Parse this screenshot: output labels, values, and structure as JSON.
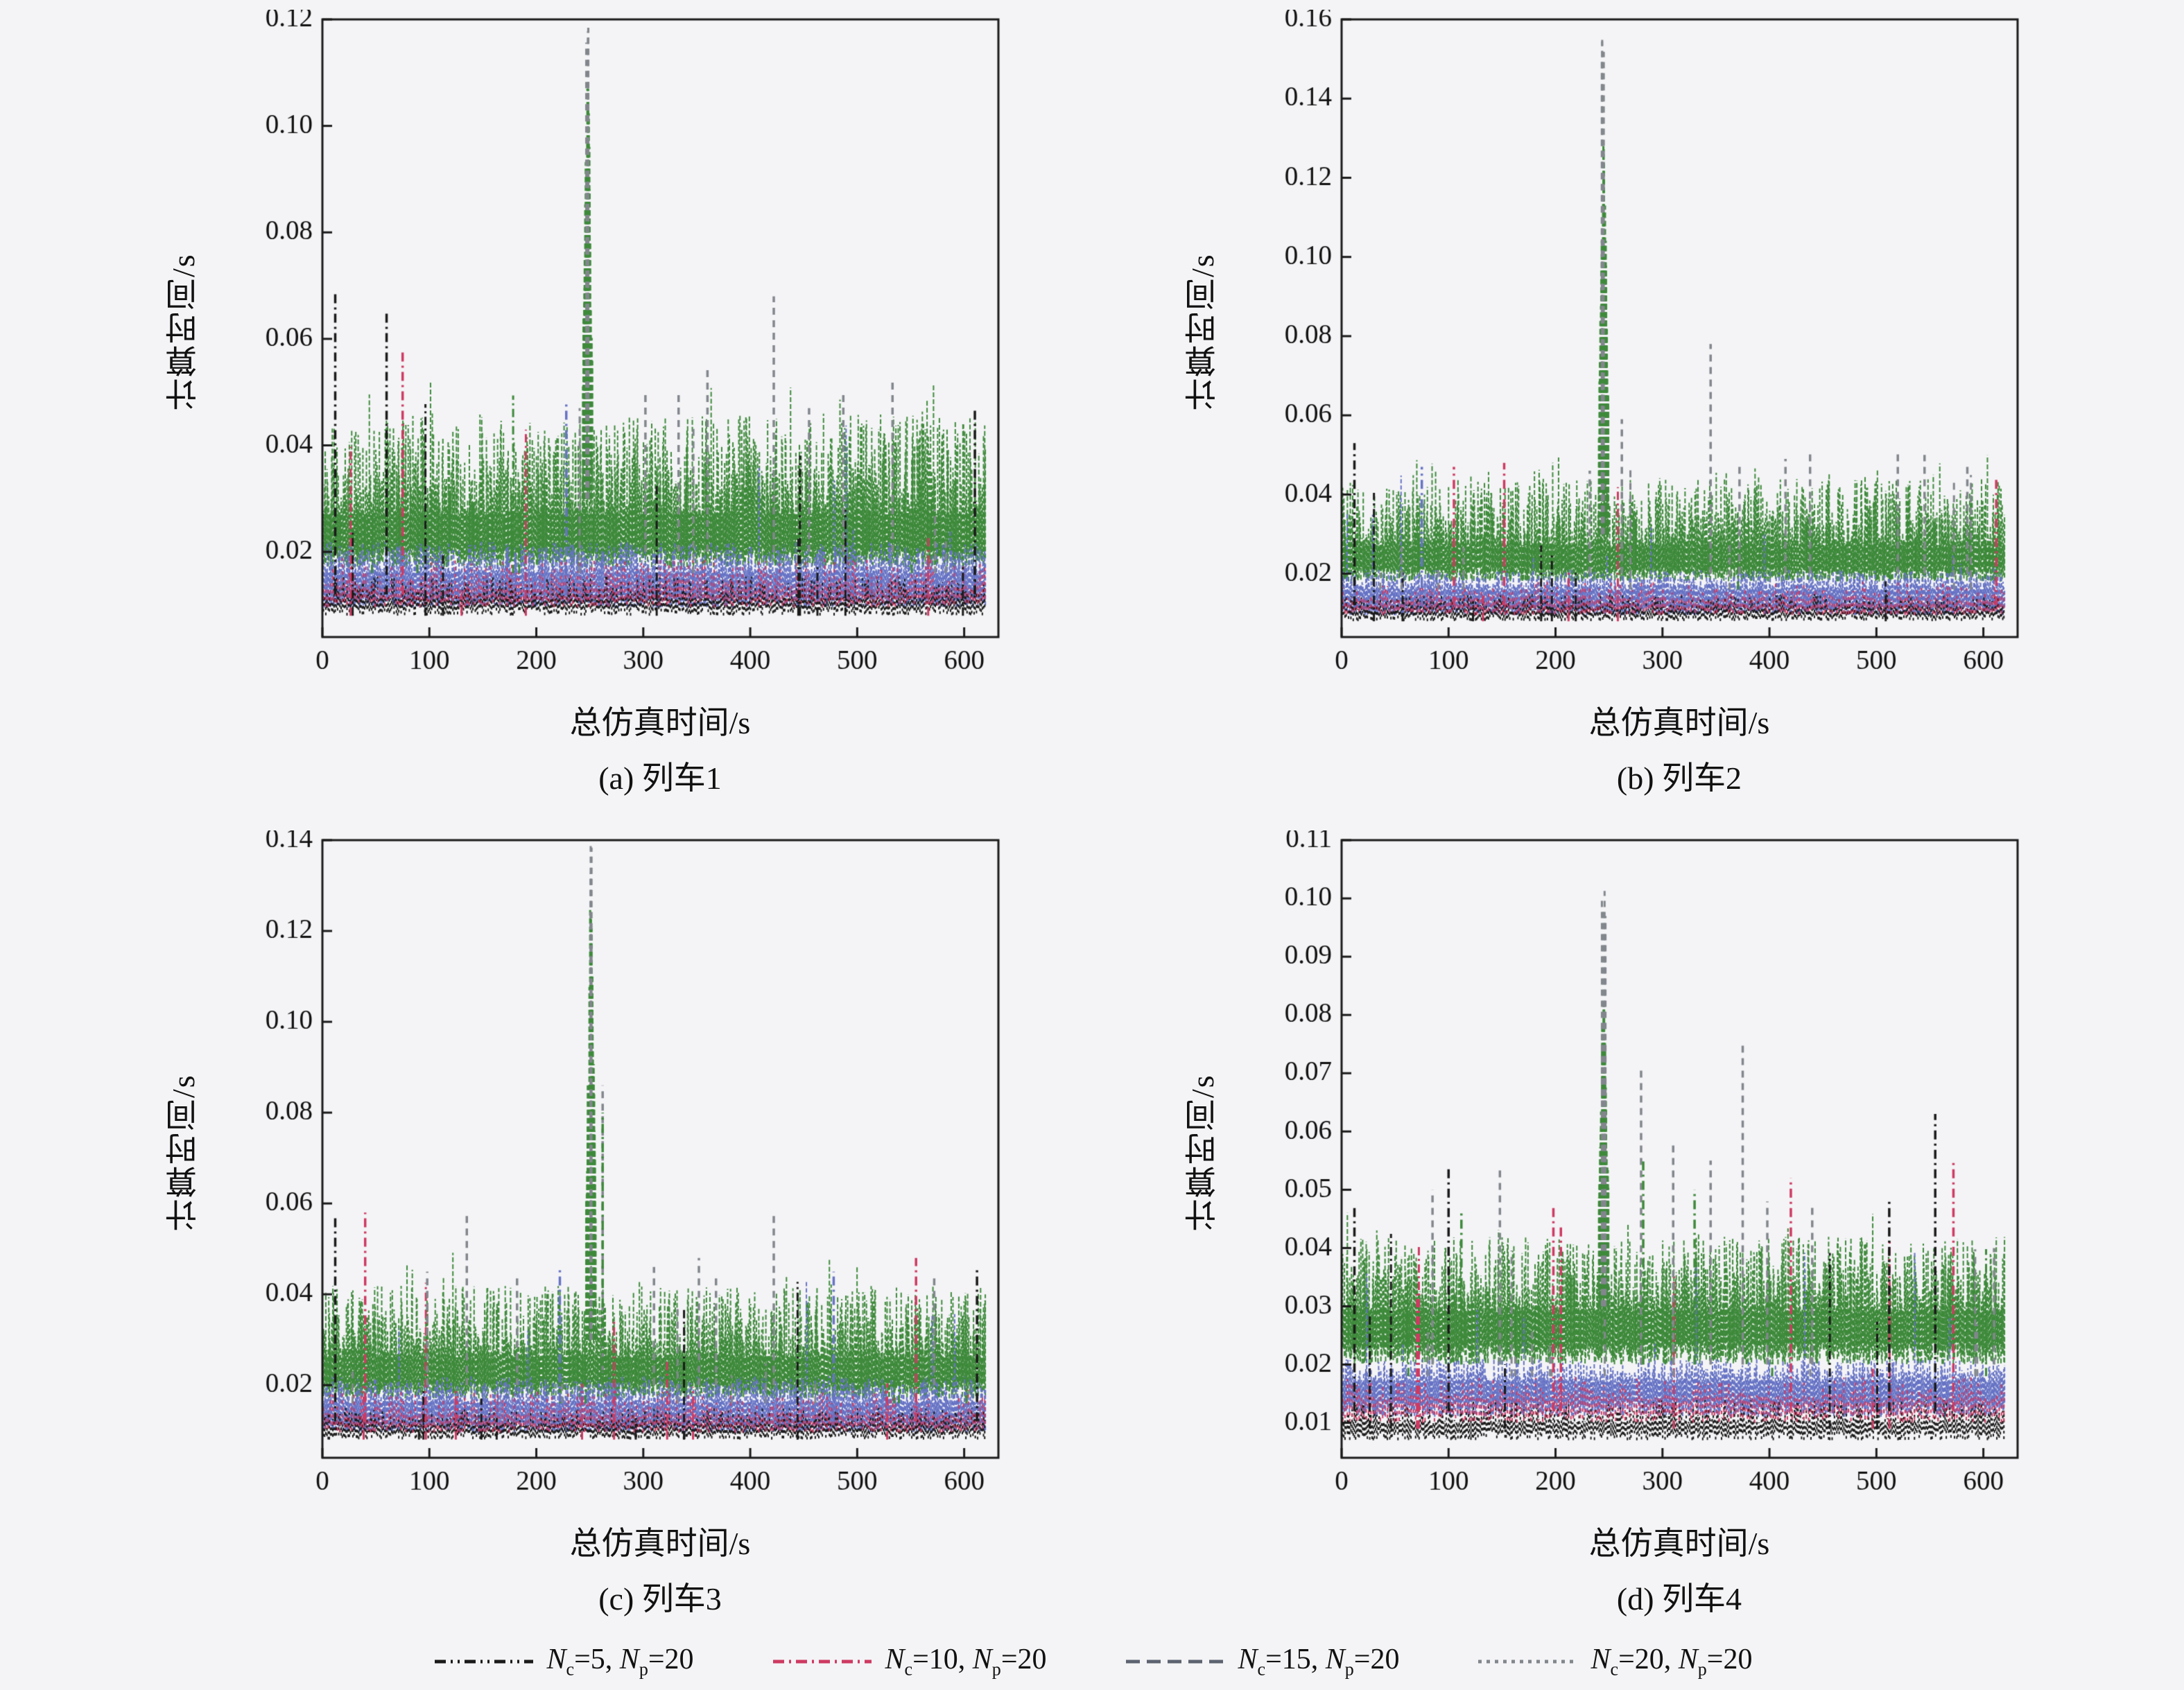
{
  "figure": {
    "background": "#f4f4f6",
    "axis_color": "#1a1a1a",
    "legend_position": "bottom"
  },
  "palette": {
    "black": "#1a1a1a",
    "red": "#ce3a62",
    "blue": "#6673c5",
    "green": "#3e8a3b",
    "gray": "#82878d",
    "darkgray": "#5c6370"
  },
  "legend": {
    "items": [
      {
        "name": "Nc=5, Np=20",
        "var1": "N",
        "sub1": "c",
        "rest1": "=5, ",
        "var2": "N",
        "sub2": "p",
        "rest2": "=20",
        "color": "#1a1a1a",
        "dash": "16 7 3 7 3 7"
      },
      {
        "name": "Nc=10, Np=20",
        "var1": "N",
        "sub1": "c",
        "rest1": "=10, ",
        "var2": "N",
        "sub2": "p",
        "rest2": "=20",
        "color": "#ce3a62",
        "dash": "16 7 3 7"
      },
      {
        "name": "Nc=15, Np=20",
        "var1": "N",
        "sub1": "c",
        "rest1": "=15, ",
        "var2": "N",
        "sub2": "p",
        "rest2": "=20",
        "color": "#5c6370",
        "dash": "20 10"
      },
      {
        "name": "Nc=20, Np=20",
        "var1": "N",
        "sub1": "c",
        "rest1": "=20, ",
        "var2": "N",
        "sub2": "p",
        "rest2": "=20",
        "color": "#82878d",
        "dash": "5 7"
      }
    ]
  },
  "chart_data": [
    {
      "id": "a",
      "type": "line",
      "caption": "(a) 列车1",
      "xlabel": "总仿真时间/s",
      "ylabel": "计算时间/s",
      "xlim": [
        0,
        632
      ],
      "xticks": [
        0,
        100,
        200,
        300,
        400,
        500,
        600
      ],
      "ylim": [
        0.004,
        0.12
      ],
      "yticks": [
        0.02,
        0.04,
        0.06,
        0.08,
        0.1,
        0.12
      ],
      "series": [
        {
          "name": "Nc=5, Np=20",
          "color": "#1a1a1a"
        },
        {
          "name": "Nc=10, Np=20",
          "color": "#ce3a62"
        },
        {
          "name": "Nc=15, Np=20",
          "color": "#5c6370"
        },
        {
          "name": "Nc=20, Np=20",
          "color": "#82878d"
        }
      ],
      "peak": {
        "x": 248,
        "green": 0.107,
        "top": 0.119
      },
      "bands": [
        {
          "color": "green",
          "lo": [
            0.017,
            0.021
          ],
          "hi": [
            0.027,
            0.046
          ],
          "step": 0.55,
          "spike_rate": 0.03,
          "spike_max": 0.052
        },
        {
          "color": "blue",
          "lo": [
            0.0095,
            0.012
          ],
          "hi": [
            0.016,
            0.022
          ],
          "step": 0.7,
          "spike_rate": 0.006,
          "spike_max": 0.046
        },
        {
          "color": "black",
          "lo": [
            0.008,
            0.01
          ],
          "hi": [
            0.011,
            0.0155
          ],
          "step": 1.1,
          "spike_rate": 0,
          "spike_max": 0
        },
        {
          "color": "red",
          "lo": [
            0.0095,
            0.0115
          ],
          "hi": [
            0.013,
            0.019
          ],
          "step": 2.2,
          "spike_rate": 0,
          "spike_max": 0
        }
      ],
      "spikes": [
        {
          "color": "black",
          "rate": 0.018,
          "max": 0.052,
          "from": 0.012
        },
        {
          "color": "red",
          "rate": 0.016,
          "max": 0.05,
          "from": 0.012
        },
        {
          "color": "gray",
          "rate": 0.02,
          "max": 0.048,
          "from": 0.02
        },
        {
          "color": "green",
          "rate": 0.012,
          "max": 0.05,
          "from": 0.02
        }
      ],
      "extra_spikes": [
        {
          "x": 12,
          "y": 0.069,
          "c": "black"
        },
        {
          "x": 60,
          "y": 0.065,
          "c": "black"
        },
        {
          "x": 75,
          "y": 0.058,
          "c": "red"
        },
        {
          "x": 228,
          "y": 0.048,
          "c": "blue"
        },
        {
          "x": 302,
          "y": 0.05,
          "c": "gray"
        },
        {
          "x": 333,
          "y": 0.05,
          "c": "gray"
        },
        {
          "x": 360,
          "y": 0.055,
          "c": "gray"
        },
        {
          "x": 422,
          "y": 0.068,
          "c": "gray"
        },
        {
          "x": 455,
          "y": 0.047,
          "c": "gray"
        },
        {
          "x": 487,
          "y": 0.05,
          "c": "gray"
        },
        {
          "x": 533,
          "y": 0.052,
          "c": "gray"
        },
        {
          "x": 610,
          "y": 0.047,
          "c": "black"
        }
      ]
    },
    {
      "id": "b",
      "type": "line",
      "caption": "(b) 列车2",
      "xlabel": "总仿真时间/s",
      "ylabel": "计算时间/s",
      "xlim": [
        0,
        632
      ],
      "xticks": [
        0,
        100,
        200,
        300,
        400,
        500,
        600
      ],
      "ylim": [
        0.004,
        0.16
      ],
      "yticks": [
        0.02,
        0.04,
        0.06,
        0.08,
        0.1,
        0.12,
        0.14,
        0.16
      ],
      "series": [
        {
          "name": "Nc=5, Np=20",
          "color": "#1a1a1a"
        },
        {
          "name": "Nc=10, Np=20",
          "color": "#ce3a62"
        },
        {
          "name": "Nc=15, Np=20",
          "color": "#5c6370"
        },
        {
          "name": "Nc=20, Np=20",
          "color": "#82878d"
        }
      ],
      "peak": {
        "x": 245,
        "green": 0.128,
        "top": 0.155
      },
      "bands": [
        {
          "color": "green",
          "lo": [
            0.018,
            0.022
          ],
          "hi": [
            0.027,
            0.044
          ],
          "step": 0.55,
          "spike_rate": 0.03,
          "spike_max": 0.05
        },
        {
          "color": "blue",
          "lo": [
            0.0095,
            0.012
          ],
          "hi": [
            0.016,
            0.021
          ],
          "step": 0.7,
          "spike_rate": 0.005,
          "spike_max": 0.045
        },
        {
          "color": "black",
          "lo": [
            0.008,
            0.01
          ],
          "hi": [
            0.011,
            0.015
          ],
          "step": 1.1,
          "spike_rate": 0,
          "spike_max": 0
        },
        {
          "color": "red",
          "lo": [
            0.0095,
            0.0115
          ],
          "hi": [
            0.013,
            0.018
          ],
          "step": 2.2,
          "spike_rate": 0,
          "spike_max": 0
        }
      ],
      "spikes": [
        {
          "color": "black",
          "rate": 0.014,
          "max": 0.046,
          "from": 0.012
        },
        {
          "color": "red",
          "rate": 0.015,
          "max": 0.048,
          "from": 0.012
        },
        {
          "color": "gray",
          "rate": 0.022,
          "max": 0.05,
          "from": 0.02
        },
        {
          "color": "green",
          "rate": 0.01,
          "max": 0.046,
          "from": 0.02
        }
      ],
      "extra_spikes": [
        {
          "x": 12,
          "y": 0.053,
          "c": "black"
        },
        {
          "x": 75,
          "y": 0.047,
          "c": "blue"
        },
        {
          "x": 105,
          "y": 0.047,
          "c": "red"
        },
        {
          "x": 152,
          "y": 0.048,
          "c": "red"
        },
        {
          "x": 232,
          "y": 0.046,
          "c": "gray"
        },
        {
          "x": 262,
          "y": 0.059,
          "c": "gray"
        },
        {
          "x": 345,
          "y": 0.078,
          "c": "gray"
        },
        {
          "x": 372,
          "y": 0.048,
          "c": "gray"
        },
        {
          "x": 415,
          "y": 0.049,
          "c": "gray"
        },
        {
          "x": 438,
          "y": 0.051,
          "c": "gray"
        },
        {
          "x": 520,
          "y": 0.051,
          "c": "gray"
        },
        {
          "x": 545,
          "y": 0.05,
          "c": "gray"
        },
        {
          "x": 585,
          "y": 0.047,
          "c": "gray"
        },
        {
          "x": 612,
          "y": 0.044,
          "c": "red"
        }
      ]
    },
    {
      "id": "c",
      "type": "line",
      "caption": "(c) 列车3",
      "xlabel": "总仿真时间/s",
      "ylabel": "计算时间/s",
      "xlim": [
        0,
        632
      ],
      "xticks": [
        0,
        100,
        200,
        300,
        400,
        500,
        600
      ],
      "ylim": [
        0.004,
        0.14
      ],
      "yticks": [
        0.02,
        0.04,
        0.06,
        0.08,
        0.1,
        0.12,
        0.14
      ],
      "series": [
        {
          "name": "Nc=5, Np=20",
          "color": "#1a1a1a"
        },
        {
          "name": "Nc=10, Np=20",
          "color": "#ce3a62"
        },
        {
          "name": "Nc=15, Np=20",
          "color": "#5c6370"
        },
        {
          "name": "Nc=20, Np=20",
          "color": "#82878d"
        }
      ],
      "peak": {
        "x": 251,
        "green": 0.125,
        "top": 0.139
      },
      "bands": [
        {
          "color": "green",
          "lo": [
            0.017,
            0.021
          ],
          "hi": [
            0.026,
            0.042
          ],
          "step": 0.55,
          "spike_rate": 0.028,
          "spike_max": 0.05
        },
        {
          "color": "blue",
          "lo": [
            0.0095,
            0.012
          ],
          "hi": [
            0.016,
            0.022
          ],
          "step": 0.7,
          "spike_rate": 0.006,
          "spike_max": 0.044
        },
        {
          "color": "black",
          "lo": [
            0.008,
            0.01
          ],
          "hi": [
            0.011,
            0.015
          ],
          "step": 1.1,
          "spike_rate": 0,
          "spike_max": 0
        },
        {
          "color": "red",
          "lo": [
            0.0095,
            0.0115
          ],
          "hi": [
            0.013,
            0.019
          ],
          "step": 2.2,
          "spike_rate": 0,
          "spike_max": 0
        }
      ],
      "spikes": [
        {
          "color": "black",
          "rate": 0.014,
          "max": 0.046,
          "from": 0.012
        },
        {
          "color": "red",
          "rate": 0.014,
          "max": 0.046,
          "from": 0.012
        },
        {
          "color": "gray",
          "rate": 0.02,
          "max": 0.046,
          "from": 0.02
        },
        {
          "color": "green",
          "rate": 0.01,
          "max": 0.046,
          "from": 0.02
        }
      ],
      "extra_spikes": [
        {
          "x": 12,
          "y": 0.057,
          "c": "black"
        },
        {
          "x": 40,
          "y": 0.058,
          "c": "red"
        },
        {
          "x": 98,
          "y": 0.045,
          "c": "gray"
        },
        {
          "x": 135,
          "y": 0.058,
          "c": "gray"
        },
        {
          "x": 182,
          "y": 0.044,
          "c": "gray"
        },
        {
          "x": 222,
          "y": 0.046,
          "c": "blue"
        },
        {
          "x": 262,
          "y": 0.086,
          "c": "gray"
        },
        {
          "x": 262,
          "y": 0.08,
          "c": "green"
        },
        {
          "x": 310,
          "y": 0.046,
          "c": "gray"
        },
        {
          "x": 352,
          "y": 0.048,
          "c": "gray"
        },
        {
          "x": 368,
          "y": 0.044,
          "c": "gray"
        },
        {
          "x": 422,
          "y": 0.058,
          "c": "gray"
        },
        {
          "x": 478,
          "y": 0.045,
          "c": "blue"
        },
        {
          "x": 555,
          "y": 0.048,
          "c": "red"
        },
        {
          "x": 572,
          "y": 0.044,
          "c": "gray"
        },
        {
          "x": 612,
          "y": 0.046,
          "c": "black"
        }
      ]
    },
    {
      "id": "d",
      "type": "line",
      "caption": "(d) 列车4",
      "xlabel": "总仿真时间/s",
      "ylabel": "计算时间/s",
      "xlim": [
        0,
        632
      ],
      "xticks": [
        0,
        100,
        200,
        300,
        400,
        500,
        600
      ],
      "ylim": [
        0.004,
        0.11
      ],
      "yticks": [
        0.01,
        0.02,
        0.03,
        0.04,
        0.05,
        0.06,
        0.07,
        0.08,
        0.09,
        0.1,
        0.11
      ],
      "series": [
        {
          "name": "Nc=5, Np=20",
          "color": "#1a1a1a"
        },
        {
          "name": "Nc=10, Np=20",
          "color": "#ce3a62"
        },
        {
          "name": "Nc=15, Np=20",
          "color": "#5c6370"
        },
        {
          "name": "Nc=20, Np=20",
          "color": "#82878d"
        }
      ],
      "peak": {
        "x": 245,
        "green": 0.082,
        "top": 0.102
      },
      "bands": [
        {
          "color": "green",
          "lo": [
            0.02,
            0.024
          ],
          "hi": [
            0.029,
            0.042
          ],
          "step": 0.55,
          "spike_rate": 0.03,
          "spike_max": 0.048
        },
        {
          "color": "blue",
          "lo": [
            0.011,
            0.014
          ],
          "hi": [
            0.017,
            0.021
          ],
          "step": 0.7,
          "spike_rate": 0.006,
          "spike_max": 0.04
        },
        {
          "color": "black",
          "lo": [
            0.007,
            0.009
          ],
          "hi": [
            0.01,
            0.014
          ],
          "step": 1.1,
          "spike_rate": 0,
          "spike_max": 0
        },
        {
          "color": "red",
          "lo": [
            0.01,
            0.012
          ],
          "hi": [
            0.014,
            0.018
          ],
          "step": 2.2,
          "spike_rate": 0,
          "spike_max": 0
        }
      ],
      "spikes": [
        {
          "color": "black",
          "rate": 0.016,
          "max": 0.045,
          "from": 0.013
        },
        {
          "color": "red",
          "rate": 0.016,
          "max": 0.045,
          "from": 0.013
        },
        {
          "color": "gray",
          "rate": 0.022,
          "max": 0.048,
          "from": 0.022
        },
        {
          "color": "green",
          "rate": 0.012,
          "max": 0.046,
          "from": 0.022
        }
      ],
      "extra_spikes": [
        {
          "x": 12,
          "y": 0.047,
          "c": "black"
        },
        {
          "x": 85,
          "y": 0.05,
          "c": "gray"
        },
        {
          "x": 100,
          "y": 0.054,
          "c": "black"
        },
        {
          "x": 112,
          "y": 0.046,
          "c": "green"
        },
        {
          "x": 148,
          "y": 0.054,
          "c": "gray"
        },
        {
          "x": 198,
          "y": 0.047,
          "c": "red"
        },
        {
          "x": 205,
          "y": 0.044,
          "c": "red"
        },
        {
          "x": 280,
          "y": 0.071,
          "c": "gray"
        },
        {
          "x": 282,
          "y": 0.055,
          "c": "green"
        },
        {
          "x": 310,
          "y": 0.058,
          "c": "gray"
        },
        {
          "x": 330,
          "y": 0.05,
          "c": "green"
        },
        {
          "x": 345,
          "y": 0.055,
          "c": "gray"
        },
        {
          "x": 375,
          "y": 0.0755,
          "c": "gray"
        },
        {
          "x": 398,
          "y": 0.048,
          "c": "gray"
        },
        {
          "x": 420,
          "y": 0.052,
          "c": "red"
        },
        {
          "x": 440,
          "y": 0.047,
          "c": "gray"
        },
        {
          "x": 512,
          "y": 0.048,
          "c": "black"
        },
        {
          "x": 555,
          "y": 0.063,
          "c": "black"
        },
        {
          "x": 572,
          "y": 0.055,
          "c": "red"
        },
        {
          "x": 610,
          "y": 0.04,
          "c": "gray"
        }
      ]
    }
  ]
}
